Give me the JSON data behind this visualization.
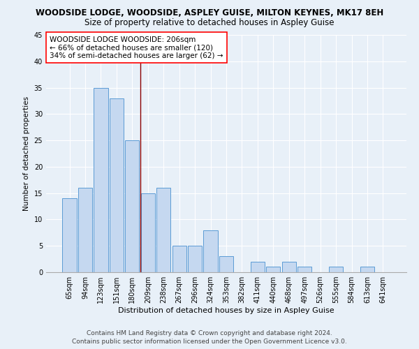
{
  "title": "WOODSIDE LODGE, WOODSIDE, ASPLEY GUISE, MILTON KEYNES, MK17 8EH",
  "subtitle": "Size of property relative to detached houses in Aspley Guise",
  "xlabel": "Distribution of detached houses by size in Aspley Guise",
  "ylabel": "Number of detached properties",
  "categories": [
    "65sqm",
    "94sqm",
    "123sqm",
    "151sqm",
    "180sqm",
    "209sqm",
    "238sqm",
    "267sqm",
    "296sqm",
    "324sqm",
    "353sqm",
    "382sqm",
    "411sqm",
    "440sqm",
    "468sqm",
    "497sqm",
    "526sqm",
    "555sqm",
    "584sqm",
    "613sqm",
    "641sqm"
  ],
  "values": [
    14,
    16,
    35,
    33,
    25,
    15,
    16,
    5,
    5,
    8,
    3,
    0,
    2,
    1,
    2,
    1,
    0,
    1,
    0,
    1,
    0
  ],
  "bar_color": "#c5d8f0",
  "bar_edge_color": "#5b9bd5",
  "reference_line_x": 4.5,
  "reference_line_color": "#8b0000",
  "ylim": [
    0,
    45
  ],
  "yticks": [
    0,
    5,
    10,
    15,
    20,
    25,
    30,
    35,
    40,
    45
  ],
  "annotation_box_text": "WOODSIDE LODGE WOODSIDE: 206sqm\n← 66% of detached houses are smaller (120)\n34% of semi-detached houses are larger (62) →",
  "footer_line1": "Contains HM Land Registry data © Crown copyright and database right 2024.",
  "footer_line2": "Contains public sector information licensed under the Open Government Licence v3.0.",
  "background_color": "#e8f0f8",
  "plot_bg_color": "#e8f0f8",
  "title_fontsize": 8.5,
  "subtitle_fontsize": 8.5,
  "xlabel_fontsize": 8,
  "ylabel_fontsize": 7.5,
  "tick_fontsize": 7,
  "annotation_fontsize": 7.5,
  "footer_fontsize": 6.5
}
